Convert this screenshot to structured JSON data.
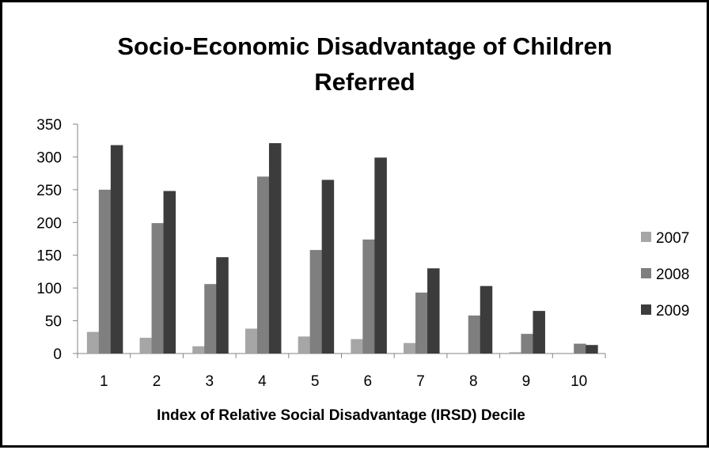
{
  "chart_data": {
    "type": "bar",
    "title_lines": [
      "Socio-Economic Disadvantage of Children",
      "Referred"
    ],
    "xlabel": "Index of Relative Social Disadvantage (IRSD) Decile",
    "ylabel": "",
    "ylim": [
      0,
      350
    ],
    "yticks": [
      0,
      50,
      100,
      150,
      200,
      250,
      300,
      350
    ],
    "categories": [
      "1",
      "2",
      "3",
      "4",
      "5",
      "6",
      "7",
      "8",
      "9",
      "10"
    ],
    "series": [
      {
        "name": "2007",
        "color": "#a6a6a6",
        "values": [
          33,
          24,
          11,
          38,
          26,
          22,
          16,
          0,
          2,
          0
        ]
      },
      {
        "name": "2008",
        "color": "#7f7f7f",
        "values": [
          250,
          199,
          106,
          270,
          158,
          174,
          93,
          58,
          30,
          15
        ]
      },
      {
        "name": "2009",
        "color": "#3c3c3c",
        "values": [
          318,
          248,
          147,
          321,
          265,
          299,
          130,
          103,
          65,
          13
        ]
      }
    ],
    "grid": false,
    "legend_position": "right"
  }
}
